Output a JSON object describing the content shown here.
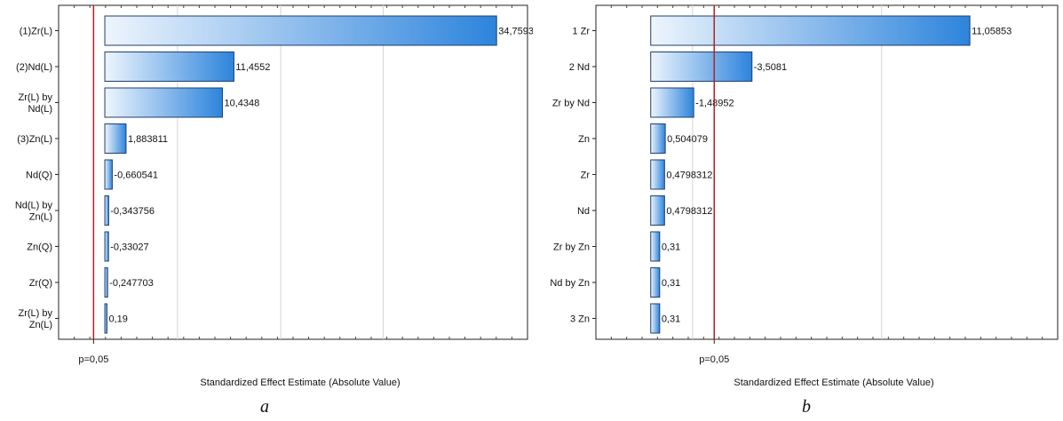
{
  "chart_data": [
    {
      "type": "bar",
      "orientation": "horizontal",
      "panel_letter": "a",
      "categories": [
        "(1)Zr(L)",
        "(2)Nd(L)",
        "Zr(L) by Nd(L)",
        "(3)Zn(L)",
        "Nd(Q)",
        "Nd(L) by Zn(L)",
        "Zn(Q)",
        "Zr(Q)",
        "Zr(L) by Zn(L)"
      ],
      "category_lines": [
        [
          "(1)Zr(L)"
        ],
        [
          "(2)Nd(L)"
        ],
        [
          "Zr(L) by",
          "Nd(L)"
        ],
        [
          "(3)Zn(L)"
        ],
        [
          "Nd(Q)"
        ],
        [
          "Nd(L) by",
          "Zn(L)"
        ],
        [
          "Zn(Q)"
        ],
        [
          "Zr(Q)"
        ],
        [
          "Zr(L) by",
          "Zn(L)"
        ]
      ],
      "values": [
        34.75935,
        11.4552,
        10.4348,
        1.883811,
        0.660541,
        0.343756,
        0.33027,
        0.247703,
        0.19
      ],
      "value_labels": [
        "34,75935",
        "11,4552",
        "10,4348",
        "1,883811",
        "-0,660541",
        "-0,343756",
        "-0,33027",
        "-0,247703",
        "0,19"
      ],
      "reference_line": {
        "value": -1.0,
        "label": "p=0,05",
        "color": "#b22222"
      },
      "xlim": [
        -4.1,
        37.5
      ],
      "grid_x": [
        -1.0,
        6.45,
        15.6,
        24.7
      ],
      "xlabel": "Standardized Effect Estimate (Absolute Value)",
      "ylabel": "",
      "grid": true,
      "bar_gradient": [
        "#eef5fd",
        "#2d84dc"
      ]
    },
    {
      "type": "bar",
      "orientation": "horizontal",
      "panel_letter": "b",
      "categories": [
        "1 Zr",
        "2 Nd",
        "Zr by Nd",
        "Zn",
        "Zr",
        "Nd",
        "Zr by Zn",
        "Nd by Zn",
        "3 Zn"
      ],
      "category_lines": [
        [
          "1 Zr"
        ],
        [
          "2 Nd"
        ],
        [
          "Zr by Nd"
        ],
        [
          "Zn"
        ],
        [
          "Zr"
        ],
        [
          "Nd"
        ],
        [
          "Zr by Zn"
        ],
        [
          "Nd by Zn"
        ],
        [
          "3 Zn"
        ]
      ],
      "values": [
        11.05853,
        3.5081,
        1.48952,
        0.504079,
        0.4798312,
        0.4798312,
        0.31,
        0.31,
        0.31
      ],
      "value_labels": [
        "11,05853",
        "-3,5081",
        "-1,48952",
        "0,504079",
        "0,4798312",
        "0,4798312",
        "0,31",
        "0,31",
        "0,31"
      ],
      "reference_line": {
        "value": 2.2,
        "label": "p=0,05",
        "color": "#b22222"
      },
      "xlim": [
        -1.9,
        14.1
      ],
      "grid_x": [
        1.45,
        8.0
      ],
      "xlabel": "Standardized Effect Estimate (Absolute Value)",
      "ylabel": "",
      "grid": true,
      "bar_gradient": [
        "#eef5fd",
        "#2d84dc"
      ]
    }
  ]
}
